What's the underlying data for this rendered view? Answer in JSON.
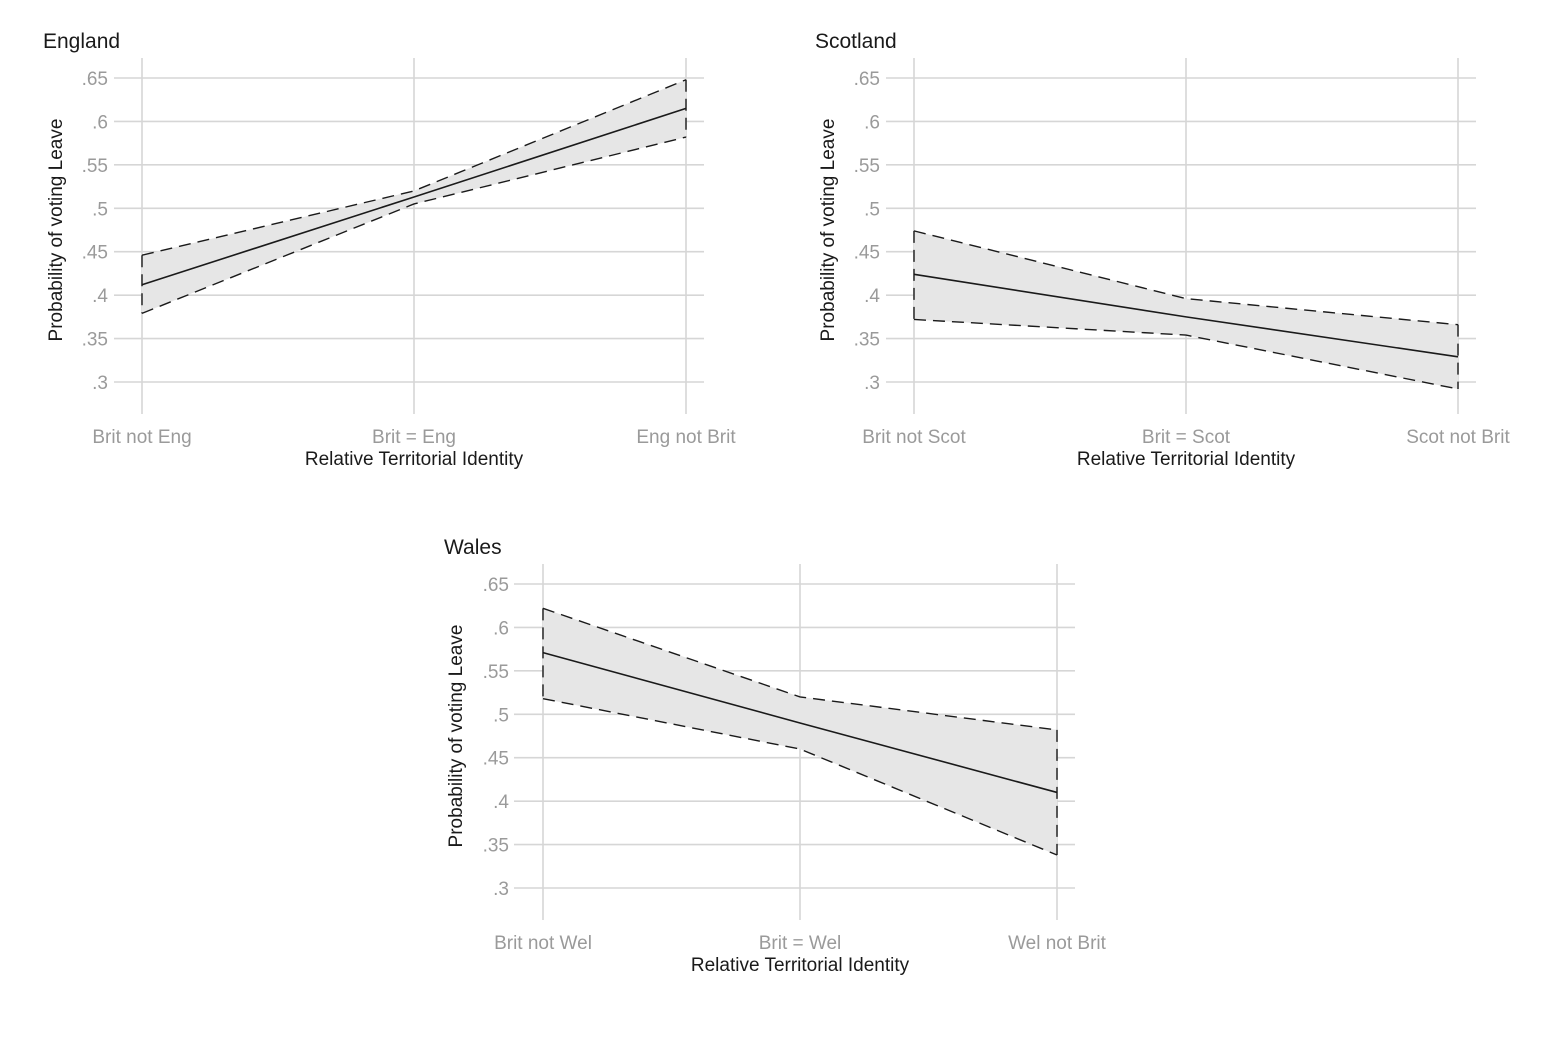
{
  "chart_data": [
    {
      "type": "line",
      "title": "England",
      "xlabel": "Relative Territorial Identity",
      "ylabel": "Probability of voting Leave",
      "categories": [
        "Brit not Eng",
        "Brit = Eng",
        "Eng not Brit"
      ],
      "yticks": [
        0.3,
        0.35,
        0.4,
        0.45,
        0.5,
        0.55,
        0.6,
        0.65
      ],
      "ytick_labels": [
        ".3",
        ".35",
        ".4",
        ".45",
        ".5",
        ".55",
        ".6",
        ".65"
      ],
      "ylim": [
        0.3,
        0.65
      ],
      "grid": true,
      "series": [
        {
          "role": "estimate",
          "values": [
            0.412,
            0.513,
            0.615
          ]
        },
        {
          "role": "ci_upper",
          "values": [
            0.446,
            0.52,
            0.648
          ]
        },
        {
          "role": "ci_lower",
          "values": [
            0.379,
            0.505,
            0.582
          ]
        }
      ]
    },
    {
      "type": "line",
      "title": "Scotland",
      "xlabel": "Relative Territorial Identity",
      "ylabel": "Probability of voting Leave",
      "categories": [
        "Brit not Scot",
        "Brit = Scot",
        "Scot not Brit"
      ],
      "yticks": [
        0.3,
        0.35,
        0.4,
        0.45,
        0.5,
        0.55,
        0.6,
        0.65
      ],
      "ytick_labels": [
        ".3",
        ".35",
        ".4",
        ".45",
        ".5",
        ".55",
        ".6",
        ".65"
      ],
      "ylim": [
        0.3,
        0.65
      ],
      "grid": true,
      "series": [
        {
          "role": "estimate",
          "values": [
            0.424,
            0.375,
            0.329
          ]
        },
        {
          "role": "ci_upper",
          "values": [
            0.474,
            0.396,
            0.366
          ]
        },
        {
          "role": "ci_lower",
          "values": [
            0.372,
            0.354,
            0.292
          ]
        }
      ]
    },
    {
      "type": "line",
      "title": "Wales",
      "xlabel": "Relative Territorial Identity",
      "ylabel": "Probability of voting Leave",
      "categories": [
        "Brit not Wel",
        "Brit = Wel",
        "Wel not Brit"
      ],
      "yticks": [
        0.3,
        0.35,
        0.4,
        0.45,
        0.5,
        0.55,
        0.6,
        0.65
      ],
      "ytick_labels": [
        ".3",
        ".35",
        ".4",
        ".45",
        ".5",
        ".55",
        ".6",
        ".65"
      ],
      "ylim": [
        0.3,
        0.65
      ],
      "grid": true,
      "series": [
        {
          "role": "estimate",
          "values": [
            0.571,
            0.49,
            0.41
          ]
        },
        {
          "role": "ci_upper",
          "values": [
            0.622,
            0.52,
            0.482
          ]
        },
        {
          "role": "ci_lower",
          "values": [
            0.518,
            0.46,
            0.338
          ]
        }
      ]
    }
  ],
  "colors": {
    "band": "#e6e6e6",
    "line": "#1a1a1a",
    "grid": "#d6d6d6",
    "tick_text": "#9a9a9a",
    "title_text": "#1a1a1a"
  }
}
